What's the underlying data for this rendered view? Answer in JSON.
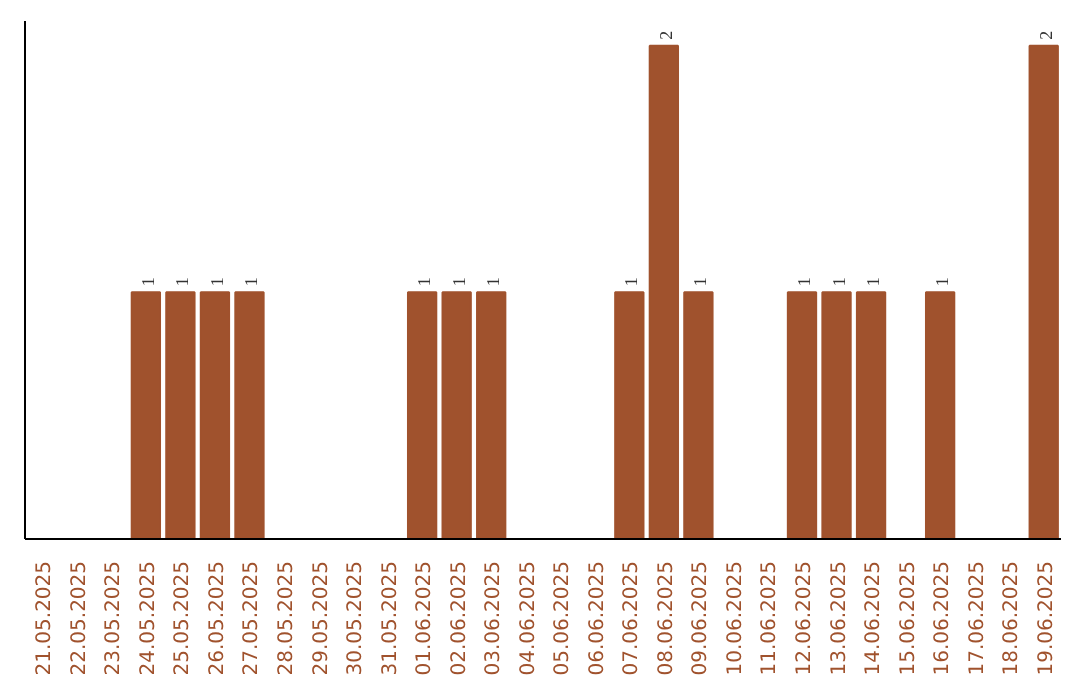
{
  "chart_data": {
    "type": "bar",
    "relative": false,
    "categories": [
      "21.05.2025",
      "22.05.2025",
      "23.05.2025",
      "24.05.2025",
      "25.05.2025",
      "26.05.2025",
      "27.05.2025",
      "28.05.2025",
      "29.05.2025",
      "30.05.2025",
      "31.05.2025",
      "01.06.2025",
      "02.06.2025",
      "03.06.2025",
      "04.06.2025",
      "05.06.2025",
      "06.06.2025",
      "07.06.2025",
      "08.06.2025",
      "09.06.2025",
      "10.06.2025",
      "11.06.2025",
      "12.06.2025",
      "13.06.2025",
      "14.06.2025",
      "15.06.2025",
      "16.06.2025",
      "17.06.2025",
      "18.06.2025",
      "19.06.2025"
    ],
    "values": [
      0,
      0,
      0,
      1,
      1,
      1,
      1,
      0,
      0,
      0,
      0,
      1,
      1,
      1,
      0,
      0,
      0,
      1,
      2,
      1,
      0,
      0,
      1,
      1,
      1,
      0,
      1,
      0,
      0,
      2
    ],
    "value_labels": [
      null,
      null,
      null,
      "1",
      "1",
      "1",
      "1",
      null,
      null,
      null,
      null,
      "1",
      "1",
      "1",
      null,
      null,
      null,
      "1",
      "2",
      "1",
      null,
      null,
      "1",
      "1",
      "1",
      null,
      "1",
      null,
      null,
      "2"
    ],
    "color": "#a0522d",
    "grid": false
  }
}
